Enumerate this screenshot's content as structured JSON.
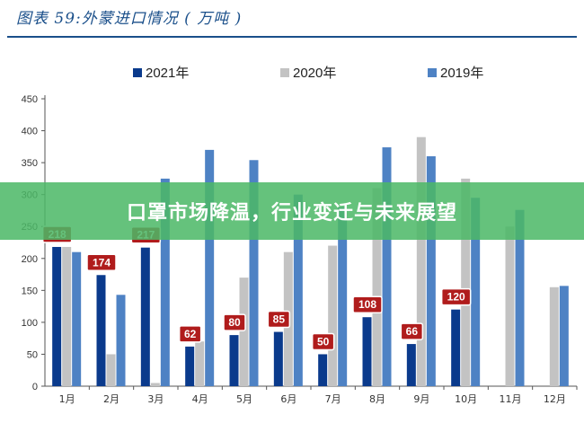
{
  "figure_title": "图表 59:外蒙进口情况 ( 万吨 )",
  "banner_text": "口罩市场降温，行业变迁与未来展望",
  "colors": {
    "s2021": "#0a3a8c",
    "s2020": "#c3c3c3",
    "s2019": "#4e82c4",
    "label_bg": "#b01c1c",
    "title": "#1a4f8a"
  },
  "chart_data": {
    "type": "bar",
    "title": "图表 59:外蒙进口情况 ( 万吨 )",
    "xlabel": "",
    "ylabel": "",
    "categories": [
      "1月",
      "2月",
      "3月",
      "4月",
      "5月",
      "6月",
      "7月",
      "8月",
      "9月",
      "10月",
      "11月",
      "12月"
    ],
    "series": [
      {
        "name": "2021年",
        "values": [
          218,
          174,
          217,
          62,
          80,
          85,
          50,
          108,
          66,
          120,
          null,
          null
        ],
        "labels": [
          218,
          174,
          217,
          62,
          80,
          85,
          50,
          108,
          66,
          120,
          null,
          null
        ]
      },
      {
        "name": "2020年",
        "values": [
          218,
          50,
          5,
          70,
          170,
          210,
          220,
          310,
          390,
          325,
          250,
          155
        ],
        "labels": []
      },
      {
        "name": "2019年",
        "values": [
          210,
          143,
          325,
          370,
          354,
          300,
          280,
          374,
          360,
          295,
          276,
          157
        ],
        "labels": []
      }
    ],
    "ylim": [
      0,
      450
    ],
    "yticks": [
      0,
      50,
      100,
      150,
      200,
      250,
      300,
      350,
      400,
      450
    ],
    "legend_position": "top-center",
    "grid": false
  }
}
